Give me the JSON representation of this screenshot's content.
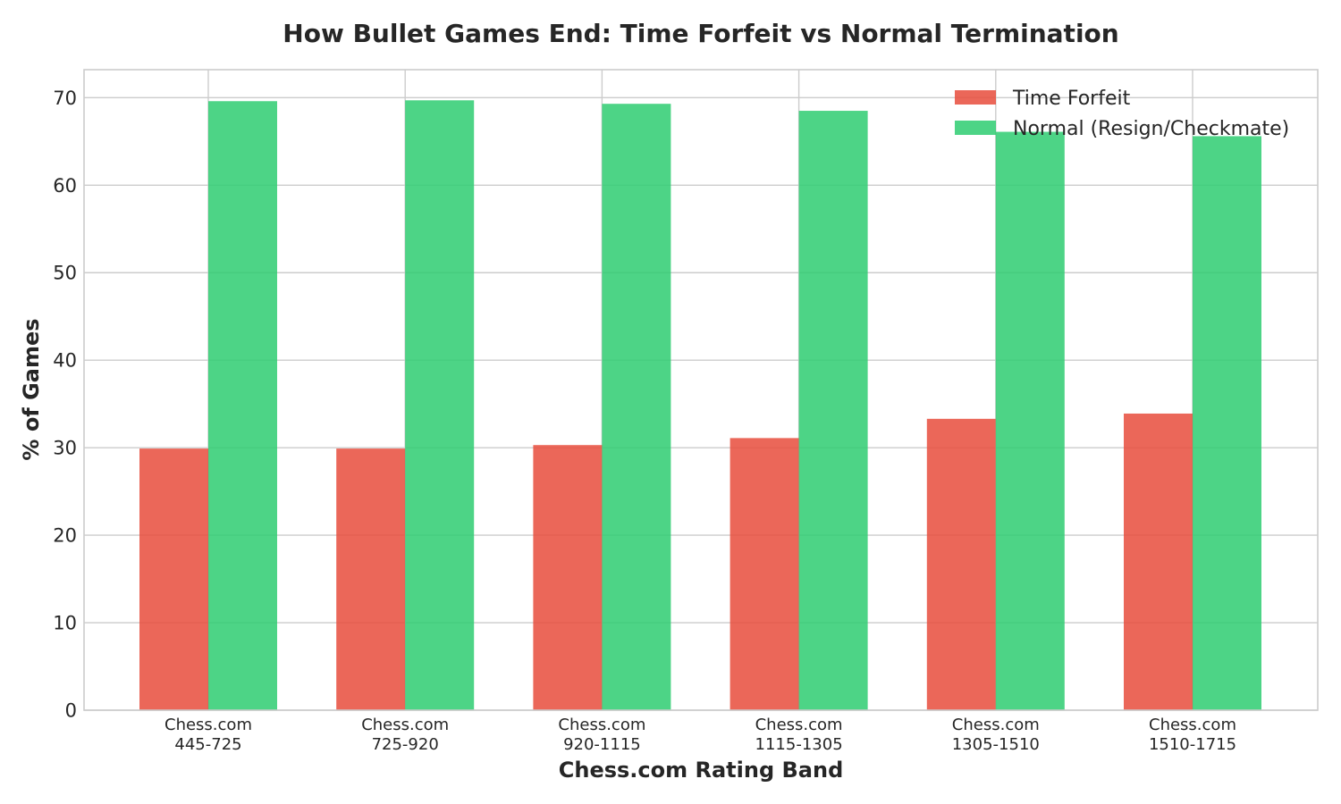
{
  "chart_data": {
    "type": "bar",
    "title": "How Bullet Games End: Time Forfeit vs Normal Termination",
    "xlabel": "Chess.com Rating Band",
    "ylabel": "% of Games",
    "ylim": [
      0,
      73.2
    ],
    "yticks": [
      0,
      10,
      20,
      30,
      40,
      50,
      60,
      70
    ],
    "grid": true,
    "legend_position": "top-right",
    "categories": [
      [
        "Chess.com",
        "445-725"
      ],
      [
        "Chess.com",
        "725-920"
      ],
      [
        "Chess.com",
        "920-1115"
      ],
      [
        "Chess.com",
        "1115-1305"
      ],
      [
        "Chess.com",
        "1305-1510"
      ],
      [
        "Chess.com",
        "1510-1715"
      ]
    ],
    "series": [
      {
        "name": "Time Forfeit",
        "color": "#e74c3c",
        "values": [
          29.9,
          29.9,
          30.3,
          31.1,
          33.3,
          33.9
        ]
      },
      {
        "name": "Normal (Resign/Checkmate)",
        "color": "#2ecc71",
        "values": [
          69.6,
          69.7,
          69.3,
          68.5,
          66.1,
          65.6
        ]
      }
    ]
  }
}
